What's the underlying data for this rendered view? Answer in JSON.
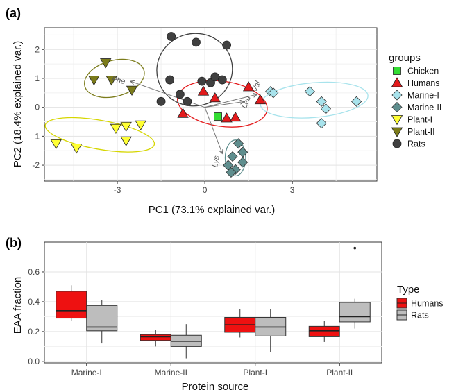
{
  "panel_a": {
    "label": "(a)",
    "xlabel": "PC1 (73.1% explained var.)",
    "ylabel": "PC2 (18.4% explained var.)",
    "legend_title": "groups"
  },
  "panel_b": {
    "label": "(b)",
    "xlabel": "Protein source",
    "ylabel": "EAA fraction",
    "legend_title": "Type"
  },
  "chart_data": [
    {
      "type": "scatter",
      "xlabel": "PC1 (73.1% explained var.)",
      "ylabel": "PC2 (18.4% explained var.)",
      "xlim": [
        -5.5,
        5.9
      ],
      "ylim": [
        -2.55,
        2.75
      ],
      "xticks": [
        -3,
        0,
        3
      ],
      "yticks": [
        -2,
        -1,
        0,
        1,
        2
      ],
      "grid": true,
      "legend_title": "groups",
      "legend_position": "right",
      "series": [
        {
          "name": "Chicken",
          "marker": "square",
          "color": "#33dd33",
          "points": [
            [
              0.45,
              -0.32
            ]
          ]
        },
        {
          "name": "Humans",
          "marker": "triangle-up",
          "color": "#e41a1c",
          "points": [
            [
              -0.05,
              0.55
            ],
            [
              0.35,
              0.32
            ],
            [
              1.5,
              0.7
            ],
            [
              1.9,
              0.25
            ],
            [
              -0.75,
              -0.22
            ],
            [
              0.75,
              -0.38
            ],
            [
              1.05,
              -0.35
            ]
          ],
          "ellipse": {
            "cx": 0.6,
            "cy": 0.12,
            "rx": 1.55,
            "ry": 0.78,
            "angle": 8
          }
        },
        {
          "name": "Marine-I",
          "marker": "diamond",
          "color": "#a8e3ec",
          "points": [
            [
              2.25,
              0.55
            ],
            [
              2.35,
              0.5
            ],
            [
              3.6,
              0.55
            ],
            [
              4.0,
              0.2
            ],
            [
              4.15,
              -0.05
            ],
            [
              5.2,
              0.2
            ],
            [
              4.0,
              -0.55
            ]
          ],
          "ellipse": {
            "cx": 3.75,
            "cy": 0.25,
            "rx": 1.85,
            "ry": 0.6,
            "angle": -5
          }
        },
        {
          "name": "Marine-II",
          "marker": "diamond",
          "color": "#5f8e8e",
          "points": [
            [
              1.15,
              -1.25
            ],
            [
              1.3,
              -1.55
            ],
            [
              0.95,
              -1.7
            ],
            [
              1.3,
              -1.9
            ],
            [
              0.8,
              -2.0
            ],
            [
              1.05,
              -2.15
            ],
            [
              0.9,
              -2.25
            ]
          ],
          "ellipse": {
            "cx": 1.05,
            "cy": -1.75,
            "rx": 0.35,
            "ry": 0.62,
            "angle": 0
          }
        },
        {
          "name": "Plant-I",
          "marker": "triangle-down",
          "color": "#ffff33",
          "points": [
            [
              -5.1,
              -1.25
            ],
            [
              -4.4,
              -1.4
            ],
            [
              -3.05,
              -0.72
            ],
            [
              -2.7,
              -0.65
            ],
            [
              -2.2,
              -0.6
            ],
            [
              -2.7,
              -1.15
            ]
          ],
          "ellipse": {
            "cx": -3.6,
            "cy": -0.95,
            "rx": 1.9,
            "ry": 0.5,
            "angle": 10
          }
        },
        {
          "name": "Plant-II",
          "marker": "triangle-down",
          "color": "#7b7b1a",
          "points": [
            [
              -3.4,
              1.55
            ],
            [
              -3.8,
              0.95
            ],
            [
              -3.2,
              0.95
            ],
            [
              -2.5,
              0.6
            ]
          ],
          "ellipse": {
            "cx": -3.1,
            "cy": 1.0,
            "rx": 1.05,
            "ry": 0.62,
            "angle": -15
          }
        },
        {
          "name": "Rats",
          "marker": "circle",
          "color": "#404040",
          "points": [
            [
              -1.15,
              2.45
            ],
            [
              -0.3,
              2.25
            ],
            [
              0.75,
              2.15
            ],
            [
              -1.2,
              0.95
            ],
            [
              -0.1,
              0.9
            ],
            [
              0.2,
              0.85
            ],
            [
              0.35,
              1.05
            ],
            [
              0.6,
              0.95
            ],
            [
              -0.85,
              0.45
            ],
            [
              -0.6,
              0.2
            ],
            [
              -1.5,
              0.2
            ]
          ],
          "ellipse": {
            "cx": -0.35,
            "cy": 1.3,
            "rx": 1.3,
            "ry": 1.25,
            "angle": -15
          }
        }
      ],
      "vectors": [
        {
          "label": "Phe",
          "to": [
            -2.55,
            0.9
          ]
        },
        {
          "label": "Val",
          "to": [
            1.8,
            0.45
          ]
        },
        {
          "label": "Leu",
          "to": [
            1.35,
            0.2
          ]
        },
        {
          "label": "Lys",
          "to": [
            0.6,
            -1.6
          ]
        }
      ]
    },
    {
      "type": "box",
      "xlabel": "Protein source",
      "ylabel": "EAA fraction",
      "categories": [
        "Marine-I",
        "Marine-II",
        "Plant-I",
        "Plant-II"
      ],
      "ylim": [
        -0.01,
        0.8
      ],
      "yticks": [
        0.0,
        0.2,
        0.4,
        0.6
      ],
      "grid": true,
      "legend_title": "Type",
      "legend_position": "right",
      "series": [
        {
          "name": "Humans",
          "color": "#ee1111",
          "boxes": [
            {
              "min": 0.27,
              "q1": 0.29,
              "median": 0.34,
              "q3": 0.47,
              "max": 0.51
            },
            {
              "min": 0.1,
              "q1": 0.14,
              "median": 0.165,
              "q3": 0.18,
              "max": 0.21
            },
            {
              "min": 0.16,
              "q1": 0.195,
              "median": 0.245,
              "q3": 0.295,
              "max": 0.35
            },
            {
              "min": 0.13,
              "q1": 0.165,
              "median": 0.205,
              "q3": 0.235,
              "max": 0.27
            }
          ]
        },
        {
          "name": "Rats",
          "color": "#bdbdbd",
          "boxes": [
            {
              "min": 0.12,
              "q1": 0.205,
              "median": 0.23,
              "q3": 0.375,
              "max": 0.41
            },
            {
              "min": 0.02,
              "q1": 0.1,
              "median": 0.135,
              "q3": 0.175,
              "max": 0.25
            },
            {
              "min": 0.06,
              "q1": 0.17,
              "median": 0.23,
              "q3": 0.295,
              "max": 0.35
            },
            {
              "min": 0.22,
              "q1": 0.265,
              "median": 0.3,
              "q3": 0.395,
              "max": 0.42,
              "outliers": [
                0.76
              ]
            }
          ]
        }
      ]
    }
  ]
}
